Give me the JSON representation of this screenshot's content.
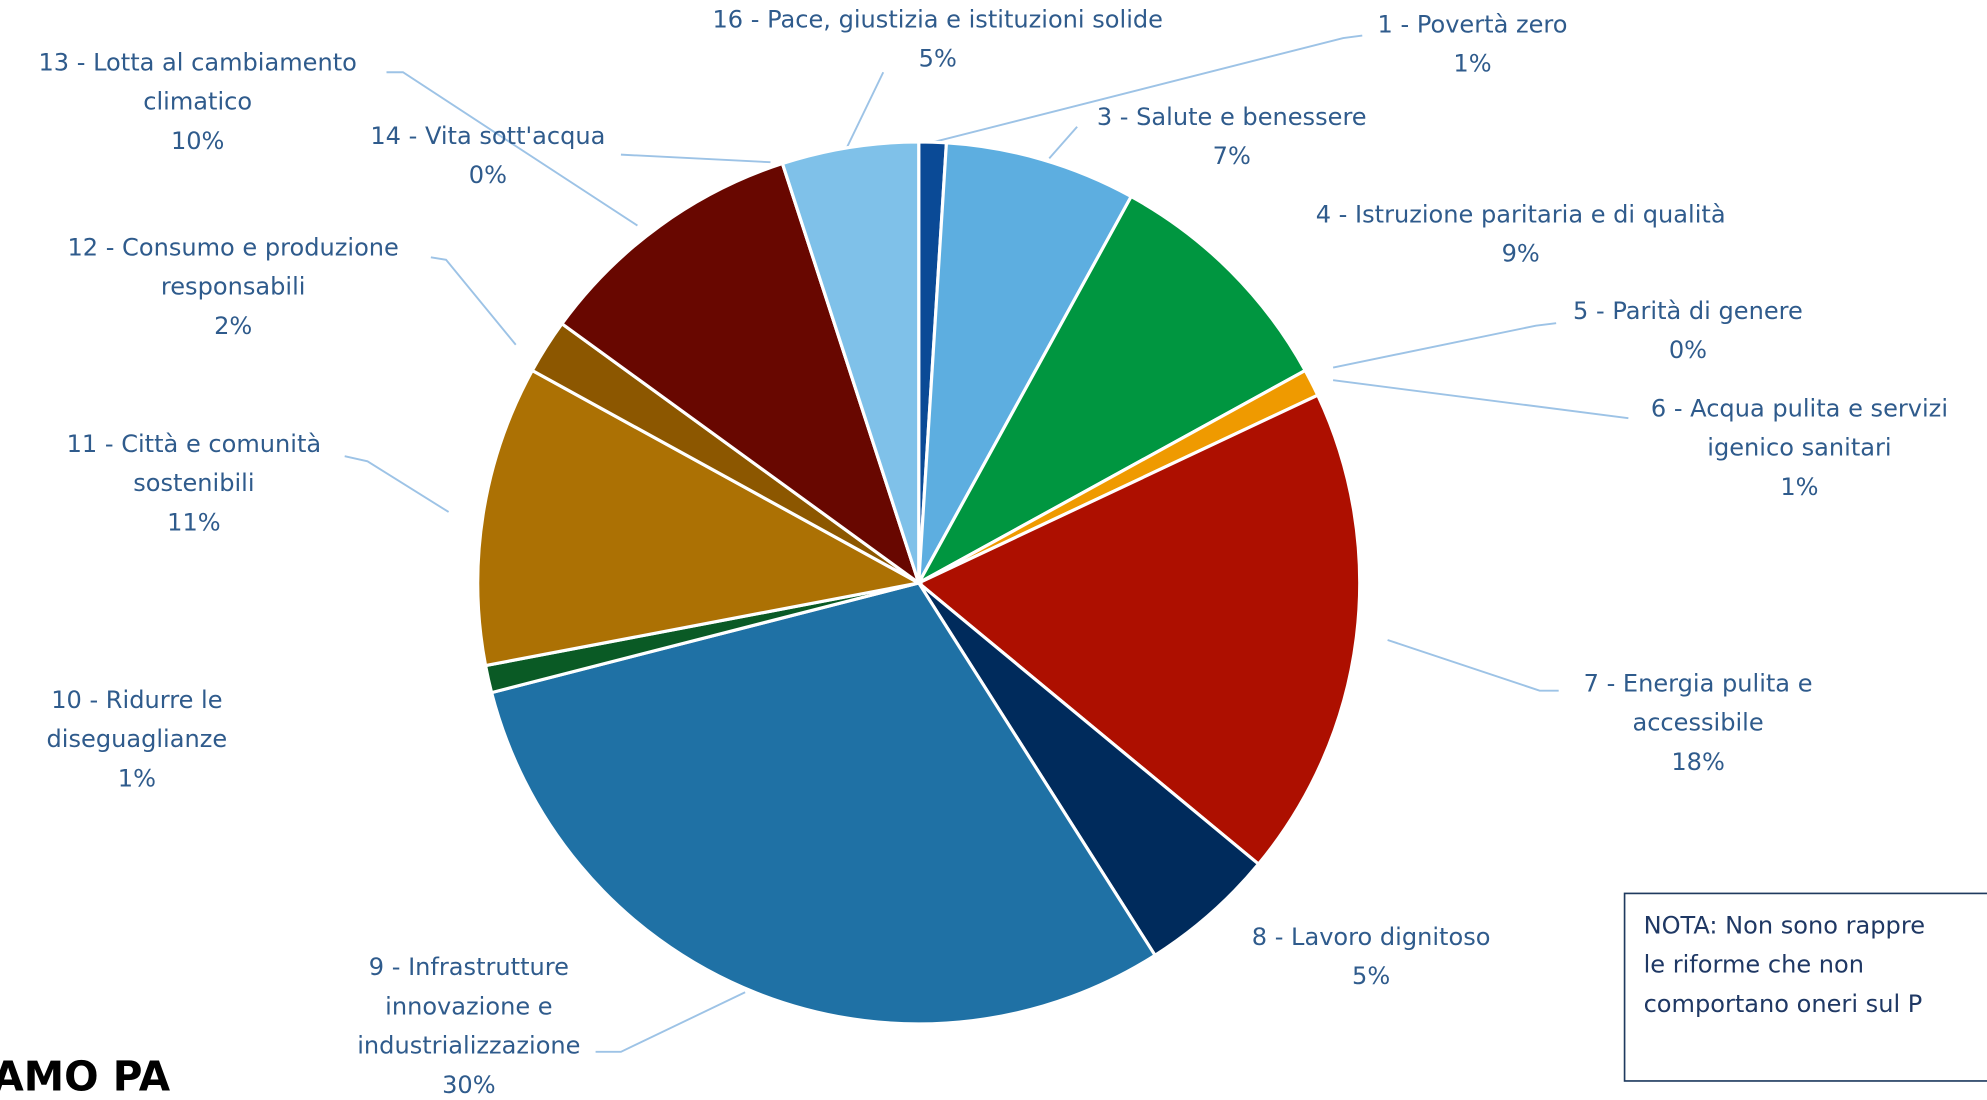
{
  "chart_data": {
    "type": "pie",
    "categories": [
      "1 - Povertà zero",
      "3 - Salute e benessere",
      "4 - Istruzione paritaria e di qualità",
      "5 - Parità di genere",
      "6 - Acqua pulita e servizi igenico sanitari",
      "7 - Energia pulita e accessibile",
      "8 - Lavoro dignitoso",
      "9 - Infrastrutture innovazione e industrializzazione",
      "10 - Ridurre le diseguaglianze",
      "11 - Città e comunità sostenibili",
      "12 - Consumo e produzione responsabili",
      "13 - Lotta al cambiamento climatico",
      "14 - Vita sott'acqua",
      "16 - Pace, giustizia e istituzioni solide"
    ],
    "values": [
      1,
      7,
      9,
      0,
      1,
      18,
      5,
      30,
      1,
      11,
      2,
      10,
      0,
      5
    ],
    "value_labels": [
      "1%",
      "7%",
      "9%",
      "0%",
      "1%",
      "18%",
      "5%",
      "30%",
      "1%",
      "11%",
      "2%",
      "10%",
      "0%",
      "5%"
    ],
    "colors": [
      "#0a4a96",
      "#5daee0",
      "#009640",
      "#e8a013",
      "#ef9a00",
      "#ad0f00",
      "#002b5c",
      "#1f71a5",
      "#0a5a25",
      "#ac7104",
      "#8c5700",
      "#680700",
      "#2a7a6a",
      "#7fc1e9"
    ]
  },
  "note": [
    "NOTA: Non sono rappre",
    "le riforme che non",
    "comportano oneri sul P"
  ],
  "logo": "AMO PA"
}
